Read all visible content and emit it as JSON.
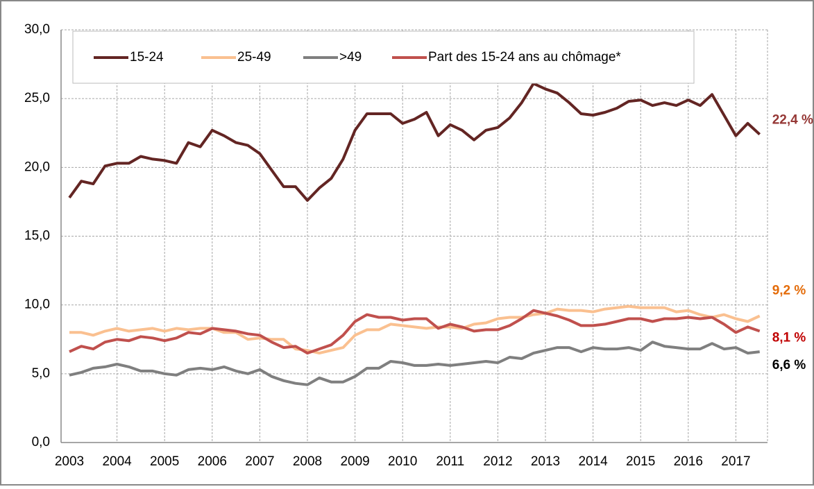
{
  "chart_data": {
    "type": "line",
    "categories": [
      "2003",
      null,
      null,
      null,
      "2004",
      null,
      null,
      null,
      "2005",
      null,
      null,
      null,
      "2006",
      null,
      null,
      null,
      "2007",
      null,
      null,
      null,
      "2008",
      null,
      null,
      null,
      "2009",
      null,
      null,
      null,
      "2010",
      null,
      null,
      null,
      "2011",
      null,
      null,
      null,
      "2012",
      null,
      null,
      null,
      "2013",
      null,
      null,
      null,
      "2014",
      null,
      null,
      null,
      "2015",
      null,
      null,
      null,
      "2016",
      null,
      null,
      null,
      "2017",
      null,
      null
    ],
    "series": [
      {
        "name": "15-24",
        "color": "#632523",
        "label_color": "#953735",
        "values": [
          17.8,
          19.0,
          18.8,
          20.1,
          20.3,
          20.3,
          20.8,
          20.6,
          20.5,
          20.3,
          21.8,
          21.5,
          22.7,
          22.3,
          21.8,
          21.6,
          21.0,
          19.8,
          18.6,
          18.6,
          17.6,
          18.5,
          19.2,
          20.6,
          22.7,
          23.9,
          23.9,
          23.9,
          23.2,
          23.5,
          24.0,
          22.3,
          23.1,
          22.7,
          22.0,
          22.7,
          22.9,
          23.6,
          24.7,
          26.1,
          25.7,
          25.4,
          24.7,
          23.9,
          23.8,
          24.0,
          24.3,
          24.8,
          24.9,
          24.5,
          24.7,
          24.5,
          24.9,
          24.5,
          25.3,
          23.8,
          22.3,
          23.2,
          22.4
        ],
        "value_labels": [
          null,
          null,
          null,
          null,
          null,
          null,
          null,
          null,
          null,
          null,
          null,
          null,
          null,
          null,
          null,
          null,
          null,
          null,
          null,
          null,
          null,
          null,
          null,
          null,
          null,
          null,
          null,
          null,
          null,
          null,
          null,
          null,
          null,
          null,
          null,
          null,
          null,
          null,
          null,
          null,
          null,
          null,
          null,
          null,
          null,
          null,
          null,
          null,
          null,
          null,
          null,
          null,
          null,
          null,
          null,
          null,
          null,
          null,
          "22,4 %"
        ]
      },
      {
        "name": "25-49",
        "color": "#fac090",
        "label_color": "#e46c0a",
        "values": [
          8.0,
          8.0,
          7.8,
          8.1,
          8.3,
          8.1,
          8.2,
          8.3,
          8.1,
          8.3,
          8.2,
          8.3,
          8.3,
          8.0,
          8.0,
          7.5,
          7.6,
          7.5,
          7.5,
          6.8,
          6.7,
          6.5,
          6.7,
          6.9,
          7.8,
          8.2,
          8.2,
          8.6,
          8.5,
          8.4,
          8.3,
          8.4,
          8.4,
          8.3,
          8.6,
          8.7,
          9.0,
          9.1,
          9.1,
          9.3,
          9.4,
          9.7,
          9.6,
          9.6,
          9.5,
          9.7,
          9.8,
          9.9,
          9.8,
          9.8,
          9.8,
          9.5,
          9.6,
          9.3,
          9.1,
          9.3,
          9.0,
          8.8,
          9.2
        ],
        "value_labels": [
          null,
          null,
          null,
          null,
          null,
          null,
          null,
          null,
          null,
          null,
          null,
          null,
          null,
          null,
          null,
          null,
          null,
          null,
          null,
          null,
          null,
          null,
          null,
          null,
          null,
          null,
          null,
          null,
          null,
          null,
          null,
          null,
          null,
          null,
          null,
          null,
          null,
          null,
          null,
          null,
          null,
          null,
          null,
          null,
          null,
          null,
          null,
          null,
          null,
          null,
          null,
          null,
          null,
          null,
          null,
          null,
          null,
          null,
          "9,2 %"
        ]
      },
      {
        "name": ">49",
        "color": "#7f7f7f",
        "label_color": "#000000",
        "values": [
          4.9,
          5.1,
          5.4,
          5.5,
          5.7,
          5.5,
          5.2,
          5.2,
          5.0,
          4.9,
          5.3,
          5.4,
          5.3,
          5.5,
          5.2,
          5.0,
          5.3,
          4.8,
          4.5,
          4.3,
          4.2,
          4.7,
          4.4,
          4.4,
          4.8,
          5.4,
          5.4,
          5.9,
          5.8,
          5.6,
          5.6,
          5.7,
          5.6,
          5.7,
          5.8,
          5.9,
          5.8,
          6.2,
          6.1,
          6.5,
          6.7,
          6.9,
          6.9,
          6.6,
          6.9,
          6.8,
          6.8,
          6.9,
          6.7,
          7.3,
          7.0,
          6.9,
          6.8,
          6.8,
          7.2,
          6.8,
          6.9,
          6.5,
          6.6
        ],
        "value_labels": [
          null,
          null,
          null,
          null,
          null,
          null,
          null,
          null,
          null,
          null,
          null,
          null,
          null,
          null,
          null,
          null,
          null,
          null,
          null,
          null,
          null,
          null,
          null,
          null,
          null,
          null,
          null,
          null,
          null,
          null,
          null,
          null,
          null,
          null,
          null,
          null,
          null,
          null,
          null,
          null,
          null,
          null,
          null,
          null,
          null,
          null,
          null,
          null,
          null,
          null,
          null,
          null,
          null,
          null,
          null,
          null,
          null,
          null,
          "6,6 %"
        ]
      },
      {
        "name": "Part des 15-24 ans au chômage*",
        "color": "#c0504d",
        "label_color": "#c00000",
        "values": [
          6.6,
          7.0,
          6.8,
          7.3,
          7.5,
          7.4,
          7.7,
          7.6,
          7.4,
          7.6,
          8.0,
          7.9,
          8.3,
          8.2,
          8.1,
          7.9,
          7.8,
          7.3,
          6.9,
          7.0,
          6.5,
          6.8,
          7.1,
          7.8,
          8.8,
          9.3,
          9.1,
          9.1,
          8.9,
          9.0,
          9.0,
          8.3,
          8.6,
          8.4,
          8.1,
          8.2,
          8.2,
          8.5,
          9.0,
          9.6,
          9.4,
          9.2,
          8.9,
          8.5,
          8.5,
          8.6,
          8.8,
          9.0,
          9.0,
          8.8,
          9.0,
          9.0,
          9.1,
          9.0,
          9.1,
          8.6,
          8.0,
          8.4,
          8.1
        ],
        "value_labels": [
          null,
          null,
          null,
          null,
          null,
          null,
          null,
          null,
          null,
          null,
          null,
          null,
          null,
          null,
          null,
          null,
          null,
          null,
          null,
          null,
          null,
          null,
          null,
          null,
          null,
          null,
          null,
          null,
          null,
          null,
          null,
          null,
          null,
          null,
          null,
          null,
          null,
          null,
          null,
          null,
          null,
          null,
          null,
          null,
          null,
          null,
          null,
          null,
          null,
          null,
          null,
          null,
          null,
          null,
          null,
          null,
          null,
          null,
          "8,1 %"
        ]
      }
    ],
    "ylim": [
      0,
      30
    ],
    "yticks": [
      {
        "value": 0,
        "label": "0,0"
      },
      {
        "value": 5,
        "label": "5,0"
      },
      {
        "value": 10,
        "label": "10,0"
      },
      {
        "value": 15,
        "label": "15,0"
      },
      {
        "value": 20,
        "label": "20,0"
      },
      {
        "value": 25,
        "label": "25,0"
      },
      {
        "value": 30,
        "label": "30,0"
      }
    ],
    "grid": true,
    "legend": "top"
  }
}
